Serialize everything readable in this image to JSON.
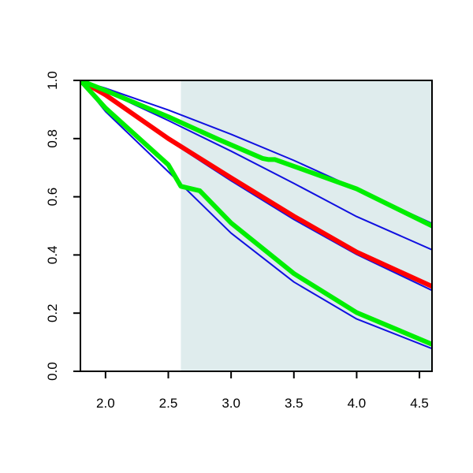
{
  "chart_data": {
    "type": "line",
    "title": "",
    "xlabel": "",
    "ylabel": "",
    "xlim": [
      1.8,
      4.6
    ],
    "ylim": [
      0.0,
      1.0
    ],
    "xticks": [
      "2.0",
      "2.5",
      "3.0",
      "3.5",
      "4.0",
      "4.5"
    ],
    "xtick_values": [
      2.0,
      2.5,
      3.0,
      3.5,
      4.0,
      4.5
    ],
    "yticks": [
      "0.0",
      "0.2",
      "0.4",
      "0.6",
      "0.8",
      "1.0"
    ],
    "ytick_values": [
      0.0,
      0.2,
      0.4,
      0.6,
      0.8,
      1.0
    ],
    "grid": false,
    "shaded_region": {
      "x_range": [
        2.6,
        4.6
      ],
      "color": "#dfeced"
    },
    "series": [
      {
        "id": "blue-upper",
        "color": "#1010e0",
        "style": "thin",
        "x": [
          1.8,
          2.0,
          2.5,
          3.0,
          3.5,
          4.0,
          4.6
        ],
        "y": [
          1.0,
          0.973,
          0.898,
          0.815,
          0.725,
          0.627,
          0.508
        ]
      },
      {
        "id": "blue-mid",
        "color": "#1010e0",
        "style": "thin",
        "x": [
          1.8,
          2.0,
          2.5,
          3.0,
          3.5,
          4.0,
          4.6
        ],
        "y": [
          1.0,
          0.963,
          0.862,
          0.757,
          0.646,
          0.532,
          0.418
        ]
      },
      {
        "id": "blue-lower-mid",
        "color": "#1010e0",
        "style": "thin",
        "x": [
          1.8,
          2.0,
          2.5,
          3.0,
          3.5,
          4.0,
          4.6
        ],
        "y": [
          1.0,
          0.948,
          0.795,
          0.655,
          0.522,
          0.402,
          0.278
        ]
      },
      {
        "id": "blue-lowest",
        "color": "#1010e0",
        "style": "thin",
        "x": [
          1.8,
          2.0,
          2.5,
          3.0,
          3.5,
          4.0,
          4.6
        ],
        "y": [
          1.0,
          0.893,
          0.686,
          0.475,
          0.307,
          0.18,
          0.078
        ]
      },
      {
        "id": "red-estimate",
        "color": "#ff0000",
        "style": "thick",
        "x": [
          1.8,
          2.0,
          2.5,
          3.0,
          3.5,
          4.0,
          4.6
        ],
        "y": [
          1.0,
          0.95,
          0.8,
          0.665,
          0.533,
          0.41,
          0.292
        ]
      },
      {
        "id": "green-upper",
        "color": "#00ee00",
        "style": "thick",
        "x": [
          1.8,
          2.0,
          2.5,
          2.9,
          3.25,
          3.3,
          3.35,
          3.5,
          4.0,
          4.6
        ],
        "y": [
          1.0,
          0.965,
          0.875,
          0.797,
          0.732,
          0.728,
          0.728,
          0.705,
          0.627,
          0.5
        ]
      },
      {
        "id": "green-lower",
        "color": "#00ee00",
        "style": "thick",
        "x": [
          1.8,
          2.0,
          2.5,
          2.6,
          2.75,
          3.0,
          3.5,
          4.0,
          4.6
        ],
        "y": [
          1.0,
          0.905,
          0.71,
          0.636,
          0.621,
          0.51,
          0.336,
          0.202,
          0.093
        ]
      }
    ]
  }
}
